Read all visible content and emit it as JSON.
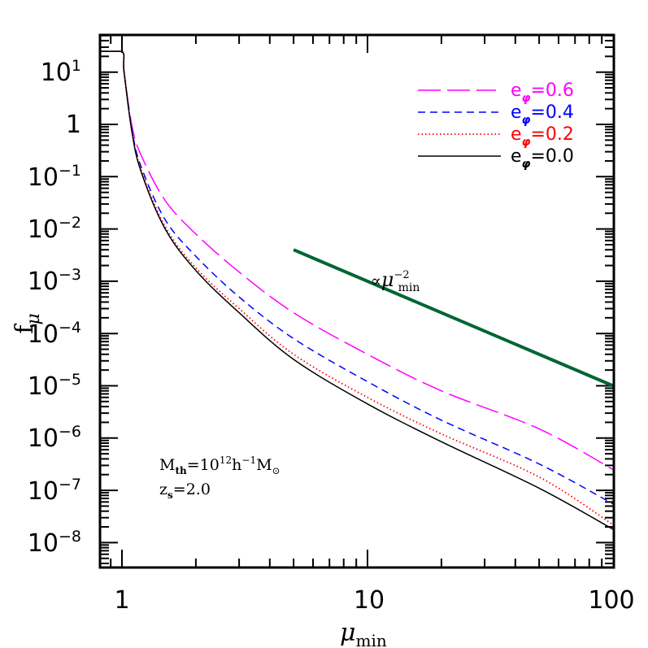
{
  "chart_data": {
    "type": "line",
    "title": "",
    "xlabel": "μ_min",
    "ylabel": "f_μ",
    "xscale": "log",
    "yscale": "log",
    "xlim": [
      0.8,
      100
    ],
    "ylim": [
      2.5e-09,
      60
    ],
    "x_ticks": [
      1,
      10,
      100
    ],
    "x_tick_labels": [
      "1",
      "10",
      "100"
    ],
    "y_ticks": [
      10,
      1,
      0.1,
      0.01,
      0.001,
      0.0001,
      1e-05,
      1e-06,
      1e-07,
      1e-08
    ],
    "y_tick_labels": [
      {
        "base": "10",
        "exp": "1"
      },
      {
        "base": "1",
        "exp": ""
      },
      {
        "base": "10",
        "exp": "−1"
      },
      {
        "base": "10",
        "exp": "−2"
      },
      {
        "base": "10",
        "exp": "−3"
      },
      {
        "base": "10",
        "exp": "−4"
      },
      {
        "base": "10",
        "exp": "−5"
      },
      {
        "base": "10",
        "exp": "−6"
      },
      {
        "base": "10",
        "exp": "−7"
      },
      {
        "base": "10",
        "exp": "−8"
      }
    ],
    "grid": false,
    "legend_position": "upper right",
    "series": [
      {
        "name": "e_φ=0.6",
        "color": "#ff00ff",
        "dash": "long-dash",
        "x": [
          0.8,
          1.0,
          1.02,
          1.1,
          1.2,
          1.5,
          2,
          3,
          5,
          10,
          20,
          50,
          100
        ],
        "y": [
          25,
          25,
          10,
          0.9,
          0.25,
          0.035,
          0.008,
          0.0015,
          0.00025,
          4e-05,
          8e-06,
          1.5e-06,
          2.5e-07
        ]
      },
      {
        "name": "e_φ=0.4",
        "color": "#0000ff",
        "dash": "short-dash",
        "x": [
          0.8,
          1.0,
          1.02,
          1.1,
          1.2,
          1.5,
          2,
          3,
          5,
          10,
          20,
          50,
          100
        ],
        "y": [
          25,
          25,
          10,
          0.75,
          0.15,
          0.015,
          0.003,
          0.0005,
          8e-05,
          1.2e-05,
          2.2e-06,
          3.2e-07,
          5.5e-08
        ]
      },
      {
        "name": "e_φ=0.2",
        "color": "#ff0000",
        "dash": "dotted",
        "x": [
          0.8,
          1.0,
          1.02,
          1.1,
          1.2,
          1.5,
          2,
          3,
          5,
          10,
          20,
          50,
          100
        ],
        "y": [
          25,
          25,
          10,
          0.7,
          0.13,
          0.011,
          0.0018,
          0.0003,
          4e-05,
          6e-06,
          1.2e-06,
          1.8e-07,
          2.2e-08
        ]
      },
      {
        "name": "e_φ=0.0",
        "color": "#000000",
        "dash": "solid",
        "x": [
          0.8,
          1.0,
          1.02,
          1.1,
          1.2,
          1.5,
          2,
          3,
          5,
          10,
          20,
          50,
          100
        ],
        "y": [
          25,
          25,
          10,
          0.68,
          0.12,
          0.01,
          0.0016,
          0.00025,
          3.2e-05,
          4.5e-06,
          8.5e-07,
          1.1e-07,
          1.8e-08
        ]
      },
      {
        "name": "∝ μ_min^−2",
        "color": "#006633",
        "dash": "solid-thick",
        "x": [
          5,
          100
        ],
        "y": [
          0.004,
          1e-05
        ]
      }
    ],
    "annotations": [
      {
        "text": "∝μ_min^−2",
        "x": 15,
        "y": 0.0012,
        "color": "#006633"
      },
      {
        "text": "M_th=10^12 h^−1 M_⊙",
        "x": 1.4,
        "y": 4e-07,
        "color": "#000000"
      },
      {
        "text": "z_s=2.0",
        "x": 1.4,
        "y": 1.2e-07,
        "color": "#000000"
      }
    ]
  },
  "legend": {
    "items": [
      {
        "label_base": "e",
        "label_sub": "φ",
        "label_value": "=0.6",
        "color": "#ff00ff"
      },
      {
        "label_base": "e",
        "label_sub": "φ",
        "label_value": "=0.4",
        "color": "#0000ff"
      },
      {
        "label_base": "e",
        "label_sub": "φ",
        "label_value": "=0.2",
        "color": "#ff0000"
      },
      {
        "label_base": "e",
        "label_sub": "φ",
        "label_value": "=0.0",
        "color": "#000000"
      }
    ]
  },
  "labels": {
    "xlabel_main": "μ",
    "xlabel_sub": "min",
    "ylabel_main": "f",
    "ylabel_sub": "μ",
    "slope_prefix": "∝",
    "slope_mu": "μ",
    "slope_sup": "−2",
    "slope_sub": "min",
    "mth_M": "M",
    "mth_sub": "th",
    "mth_eq": "=10",
    "mth_exp": "12",
    "mth_h": "h",
    "mth_hexp": "−1",
    "mth_Msun": "M",
    "mth_sun": "⊙",
    "zs_z": "z",
    "zs_sub": "s",
    "zs_eq": "=2.0"
  }
}
